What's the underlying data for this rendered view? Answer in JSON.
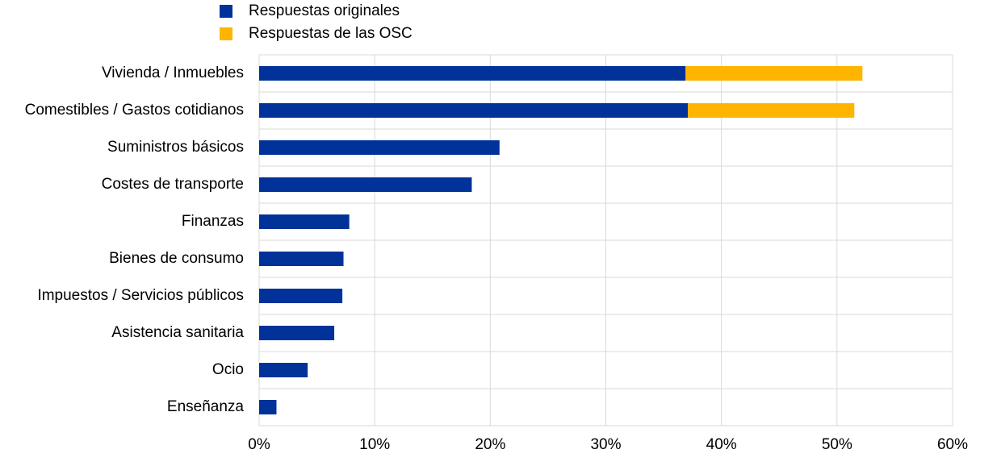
{
  "chart_data": {
    "type": "stacked-bar-horizontal",
    "categories": [
      "Vivienda / Inmuebles",
      "Comestibles / Gastos cotidianos",
      "Suministros básicos",
      "Costes de transporte",
      "Finanzas",
      "Bienes de consumo",
      "Impuestos / Servicios públicos",
      "Asistencia sanitaria",
      "Ocio",
      "Enseñanza"
    ],
    "series": [
      {
        "name": "Respuestas originales",
        "color": "#003299",
        "values": [
          36.9,
          37.1,
          20.8,
          18.4,
          7.8,
          7.3,
          7.2,
          6.5,
          4.2,
          1.5
        ]
      },
      {
        "name": "Respuestas de las OSC",
        "color": "#ffb400",
        "values": [
          15.3,
          14.4,
          null,
          null,
          null,
          null,
          null,
          null,
          null,
          null
        ]
      }
    ],
    "xlim": [
      0,
      60
    ],
    "xticks": [
      {
        "value": 0,
        "label": "0%"
      },
      {
        "value": 10,
        "label": "10%"
      },
      {
        "value": 20,
        "label": "20%"
      },
      {
        "value": 30,
        "label": "30%"
      },
      {
        "value": 40,
        "label": "40%"
      },
      {
        "value": 50,
        "label": "50%"
      },
      {
        "value": 60,
        "label": "60%"
      }
    ],
    "grid": true
  }
}
